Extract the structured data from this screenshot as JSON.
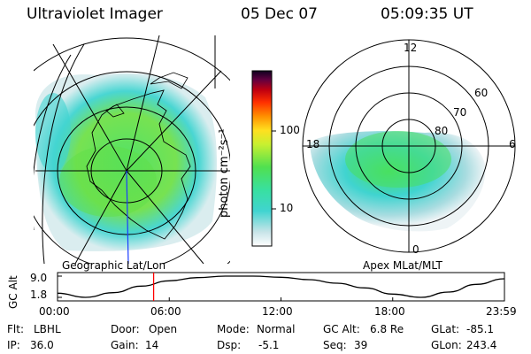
{
  "header": {
    "instrument": "Ultraviolet Imager",
    "date": "05 Dec 07",
    "time": "05:09:35 UT"
  },
  "left_panel": {
    "label": "Geographic Lat/Lon"
  },
  "right_panel": {
    "label": "Apex MLat/MLT",
    "mlt_labels": [
      "12",
      "18",
      "6",
      "0"
    ],
    "lat_labels": [
      "60",
      "70",
      "80"
    ]
  },
  "colorbar": {
    "unit_label": "photon cm⁻²s⁻¹",
    "tick_labels": [
      "100",
      "10"
    ],
    "colors": [
      "#ffffff",
      "#e0e8ec",
      "#a8dce0",
      "#40d4d0",
      "#38e0b0",
      "#48e060",
      "#90e040",
      "#d0f030",
      "#ffe020",
      "#ffa000",
      "#ff5000",
      "#e00000",
      "#a00020",
      "#500040",
      "#100020"
    ]
  },
  "chart_data": {
    "type": "line",
    "title": "",
    "ylabel": "GC Alt",
    "y_tick_labels": [
      "9.0",
      "1.8"
    ],
    "x_tick_labels": [
      "00:00",
      "06:00",
      "12:00",
      "18:00",
      "23:59"
    ],
    "x_hours": [
      0,
      1.5,
      3,
      4.5,
      6,
      7.5,
      9,
      10.5,
      12,
      13.5,
      15,
      16.5,
      18,
      19.5,
      21,
      22.5,
      24
    ],
    "y_alt_re": [
      3.2,
      1.8,
      3.4,
      5.6,
      7.4,
      8.5,
      9.0,
      9.0,
      8.6,
      7.8,
      6.6,
      5.0,
      2.9,
      1.8,
      3.6,
      6.2,
      8.1
    ],
    "ylim": [
      1.8,
      9.0
    ],
    "xlim": [
      0,
      24
    ],
    "current_time_hours": 5.16,
    "current_color": "#ff0000"
  },
  "info": {
    "row1": [
      {
        "label": "Flt:",
        "value": "LBHL"
      },
      {
        "label": "Door:",
        "value": "Open"
      },
      {
        "label": "Mode:",
        "value": "Normal"
      },
      {
        "label": "GC Alt:",
        "value": "6.8 Re"
      },
      {
        "label": "GLat:",
        "value": "-85.1"
      }
    ],
    "row2": [
      {
        "label": "IP:",
        "value": "36.0"
      },
      {
        "label": "Gain:",
        "value": "14"
      },
      {
        "label": "Dsp:",
        "value": "-5.1"
      },
      {
        "label": "Seq:",
        "value": "39"
      },
      {
        "label": "GLon:",
        "value": "243.4"
      }
    ]
  }
}
